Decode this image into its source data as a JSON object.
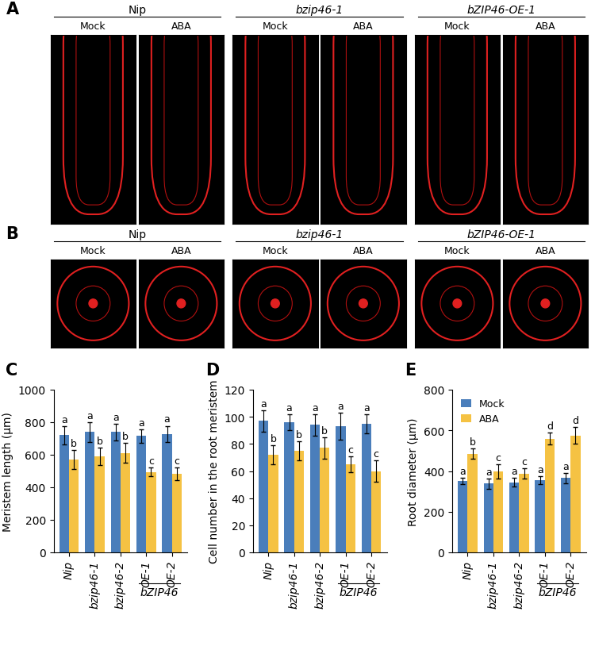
{
  "image_panels": [
    {
      "panel": "A",
      "genotypes": [
        "Nip",
        "bzip46-1",
        "bZIP46-OE-1"
      ],
      "treatments": [
        "Mock",
        "ABA"
      ]
    },
    {
      "panel": "B",
      "genotypes": [
        "Nip",
        "bzip46-1",
        "bZIP46-OE-1"
      ],
      "treatments": [
        "Mock",
        "ABA"
      ]
    }
  ],
  "chart_data": [
    {
      "panel": "C",
      "type": "bar",
      "y_label": "Meristem length (μm)",
      "categories": [
        "Nip",
        "bzip46-1",
        "bzip46-2",
        "OE-1",
        "OE-2"
      ],
      "group_label": "bZIP46",
      "ylim": [
        0,
        1000
      ],
      "yticks": [
        0,
        200,
        400,
        600,
        800,
        1000
      ],
      "series": [
        {
          "name": "Mock",
          "color": "#4a7ebb",
          "values": [
            720,
            740,
            740,
            715,
            728
          ],
          "errors": [
            55,
            60,
            50,
            40,
            50
          ],
          "letters": [
            "a",
            "a",
            "a",
            "a",
            "a"
          ]
        },
        {
          "name": "ABA",
          "color": "#f5c243",
          "values": [
            570,
            590,
            612,
            495,
            483
          ],
          "errors": [
            60,
            55,
            60,
            25,
            40
          ],
          "letters": [
            "b",
            "b",
            "b",
            "c",
            "c"
          ]
        }
      ]
    },
    {
      "panel": "D",
      "type": "bar",
      "y_label": "Cell number in the root meristem",
      "categories": [
        "Nip",
        "bzip46-1",
        "bzip46-2",
        "OE-1",
        "OE-2"
      ],
      "group_label": "bZIP46",
      "ylim": [
        0,
        120
      ],
      "yticks": [
        0,
        20,
        40,
        60,
        80,
        100,
        120
      ],
      "series": [
        {
          "name": "Mock",
          "color": "#4a7ebb",
          "values": [
            97,
            96,
            94,
            93,
            95
          ],
          "errors": [
            8,
            6,
            8,
            10,
            7
          ],
          "letters": [
            "a",
            "a",
            "a",
            "a",
            "a"
          ]
        },
        {
          "name": "ABA",
          "color": "#f5c243",
          "values": [
            72,
            75,
            77,
            65,
            60
          ],
          "errors": [
            7,
            7,
            8,
            6,
            8
          ],
          "letters": [
            "b",
            "b",
            "b",
            "c",
            "c"
          ]
        }
      ]
    },
    {
      "panel": "E",
      "type": "bar",
      "y_label": "Root diameter (μm)",
      "categories": [
        "Nip",
        "bzip46-1",
        "bzip46-2",
        "OE-1",
        "OE-2"
      ],
      "group_label": "bZIP46",
      "ylim": [
        0,
        800
      ],
      "yticks": [
        0,
        200,
        400,
        600,
        800
      ],
      "legend": "upper left",
      "series": [
        {
          "name": "Mock",
          "color": "#4a7ebb",
          "values": [
            352,
            338,
            345,
            355,
            365
          ],
          "errors": [
            15,
            25,
            20,
            20,
            25
          ],
          "letters": [
            "a",
            "a",
            "a",
            "a",
            "a"
          ]
        },
        {
          "name": "ABA",
          "color": "#f5c243",
          "values": [
            485,
            398,
            388,
            560,
            575
          ],
          "errors": [
            25,
            35,
            25,
            30,
            40
          ],
          "letters": [
            "b",
            "c",
            "c",
            "d",
            "d"
          ]
        }
      ]
    }
  ]
}
